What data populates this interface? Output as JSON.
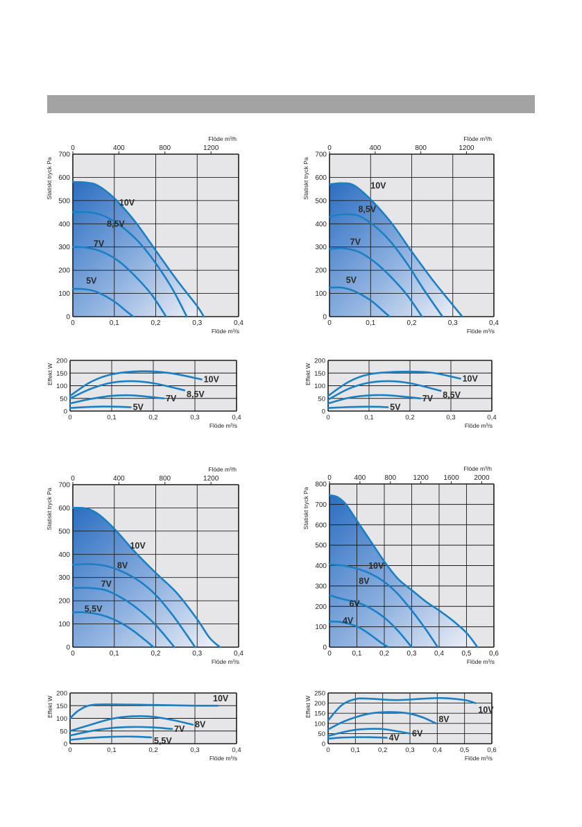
{
  "header": {
    "title": ""
  },
  "colors": {
    "plot_background": "#e6e6e8",
    "grid": "#1a1a1a",
    "curve": "#1a7fc4",
    "fill_dark": "#2b6ec1",
    "fill_light": "#f2f2f7",
    "header_bar": "#a3a3a3"
  },
  "chart_data": [
    {
      "id": "fan-a-pressure",
      "type": "line",
      "ylabel": "Statiskt tryck Pa",
      "xlabel": "Flöde m³/s",
      "top_axis_label": "Flöde m³/h",
      "xlim": [
        0,
        0.4
      ],
      "ylim": [
        0,
        700
      ],
      "x_ticks": [
        "0",
        "0,1",
        "0,2",
        "0,3",
        "0,4"
      ],
      "y_ticks": [
        "0",
        "100",
        "200",
        "300",
        "400",
        "500",
        "600",
        "700"
      ],
      "top_ticks": [
        "0",
        "400",
        "800",
        "1200"
      ],
      "grid": true,
      "fill_under_max": true,
      "series": [
        {
          "name": "10V",
          "x": [
            0,
            0.03,
            0.06,
            0.1,
            0.15,
            0.2,
            0.25,
            0.3,
            0.316
          ],
          "y": [
            580,
            578,
            565,
            510,
            410,
            285,
            160,
            45,
            0
          ]
        },
        {
          "name": "8,5V",
          "x": [
            0,
            0.04,
            0.08,
            0.12,
            0.16,
            0.2,
            0.24,
            0.275
          ],
          "y": [
            450,
            450,
            430,
            385,
            320,
            230,
            120,
            0
          ]
        },
        {
          "name": "7V",
          "x": [
            0,
            0.03,
            0.07,
            0.11,
            0.15,
            0.19,
            0.225
          ],
          "y": [
            300,
            298,
            280,
            240,
            175,
            95,
            0
          ]
        },
        {
          "name": "5V",
          "x": [
            0,
            0.03,
            0.06,
            0.1,
            0.13,
            0.146
          ],
          "y": [
            120,
            118,
            105,
            65,
            22,
            0
          ]
        }
      ]
    },
    {
      "id": "fan-a-power",
      "type": "line",
      "ylabel": "Effekt W",
      "xlabel": "Flöde m³/s",
      "xlim": [
        0,
        0.4
      ],
      "ylim": [
        0,
        200
      ],
      "x_ticks": [
        "0",
        "0,1",
        "0,2",
        "0,3",
        "0,4"
      ],
      "y_ticks": [
        "0",
        "50",
        "100",
        "150",
        "200"
      ],
      "grid": true,
      "series": [
        {
          "name": "10V",
          "x": [
            0,
            0.05,
            0.1,
            0.17,
            0.24,
            0.316
          ],
          "y": [
            60,
            115,
            145,
            157,
            150,
            125
          ]
        },
        {
          "name": "8,5V",
          "x": [
            0,
            0.05,
            0.1,
            0.15,
            0.2,
            0.275
          ],
          "y": [
            50,
            88,
            112,
            118,
            110,
            82
          ]
        },
        {
          "name": "7V",
          "x": [
            0,
            0.05,
            0.1,
            0.15,
            0.225
          ],
          "y": [
            30,
            48,
            60,
            62,
            50
          ]
        },
        {
          "name": "5V",
          "x": [
            0,
            0.04,
            0.08,
            0.12,
            0.146
          ],
          "y": [
            12,
            16,
            18,
            17,
            15
          ]
        }
      ]
    },
    {
      "id": "fan-b-pressure",
      "type": "line",
      "ylabel": "Statiskt tryck Pa",
      "xlabel": "Flöde m³/s",
      "top_axis_label": "Flöde m³/h",
      "xlim": [
        0,
        0.4
      ],
      "ylim": [
        0,
        700
      ],
      "x_ticks": [
        "0",
        "0,1",
        "0,2",
        "0,3",
        "0,4"
      ],
      "y_ticks": [
        "0",
        "100",
        "200",
        "300",
        "400",
        "500",
        "600",
        "700"
      ],
      "top_ticks": [
        "0",
        "400",
        "800",
        "1200"
      ],
      "grid": true,
      "fill_under_max": true,
      "series": [
        {
          "name": "10V",
          "x": [
            0,
            0.03,
            0.06,
            0.1,
            0.15,
            0.2,
            0.25,
            0.3,
            0.323
          ],
          "y": [
            570,
            575,
            565,
            505,
            405,
            280,
            160,
            50,
            0
          ]
        },
        {
          "name": "8,5V",
          "x": [
            0,
            0.03,
            0.07,
            0.11,
            0.15,
            0.19,
            0.23,
            0.275
          ],
          "y": [
            430,
            440,
            435,
            390,
            320,
            225,
            115,
            0
          ]
        },
        {
          "name": "7V",
          "x": [
            0,
            0.03,
            0.07,
            0.11,
            0.15,
            0.19,
            0.225
          ],
          "y": [
            290,
            295,
            280,
            235,
            170,
            90,
            0
          ]
        },
        {
          "name": "5V",
          "x": [
            0,
            0.03,
            0.06,
            0.1,
            0.13,
            0.146
          ],
          "y": [
            125,
            125,
            110,
            70,
            25,
            0
          ]
        }
      ]
    },
    {
      "id": "fan-b-power",
      "type": "line",
      "ylabel": "Effekt W",
      "xlabel": "Flöde m³/s",
      "xlim": [
        0,
        0.4
      ],
      "ylim": [
        0,
        200
      ],
      "x_ticks": [
        "0",
        "0,1",
        "0,2",
        "0,3",
        "0,4"
      ],
      "y_ticks": [
        "0",
        "50",
        "100",
        "150",
        "200"
      ],
      "grid": true,
      "series": [
        {
          "name": "10V",
          "x": [
            0,
            0.05,
            0.1,
            0.17,
            0.25,
            0.323
          ],
          "y": [
            60,
            115,
            145,
            155,
            152,
            128
          ]
        },
        {
          "name": "8,5V",
          "x": [
            0,
            0.05,
            0.1,
            0.15,
            0.2,
            0.275
          ],
          "y": [
            45,
            88,
            112,
            118,
            110,
            80
          ]
        },
        {
          "name": "7V",
          "x": [
            0,
            0.05,
            0.1,
            0.15,
            0.225
          ],
          "y": [
            30,
            52,
            62,
            62,
            50
          ]
        },
        {
          "name": "5V",
          "x": [
            0,
            0.04,
            0.08,
            0.12,
            0.146
          ],
          "y": [
            12,
            15,
            17,
            17,
            15
          ]
        }
      ]
    },
    {
      "id": "fan-c-pressure",
      "type": "line",
      "ylabel": "Statiskt tryck Pa",
      "xlabel": "Flöde m³/s",
      "top_axis_label": "Flöde m³/h",
      "xlim": [
        0,
        0.4
      ],
      "ylim": [
        0,
        700
      ],
      "x_ticks": [
        "0",
        "0,1",
        "0,2",
        "0,3",
        "0,4"
      ],
      "y_ticks": [
        "0",
        "100",
        "200",
        "300",
        "400",
        "500",
        "600",
        "700"
      ],
      "top_ticks": [
        "0",
        "400",
        "800",
        "1200"
      ],
      "grid": true,
      "fill_under_max": true,
      "series": [
        {
          "name": "10V",
          "x": [
            0,
            0.03,
            0.06,
            0.1,
            0.15,
            0.2,
            0.25,
            0.3,
            0.33,
            0.355
          ],
          "y": [
            600,
            598,
            575,
            510,
            410,
            320,
            235,
            120,
            40,
            0
          ]
        },
        {
          "name": "8V",
          "x": [
            0,
            0.04,
            0.08,
            0.12,
            0.16,
            0.2,
            0.24,
            0.27,
            0.295
          ],
          "y": [
            355,
            358,
            350,
            325,
            285,
            225,
            140,
            65,
            0
          ]
        },
        {
          "name": "7V",
          "x": [
            0,
            0.04,
            0.08,
            0.12,
            0.16,
            0.2,
            0.245
          ],
          "y": [
            255,
            255,
            245,
            210,
            160,
            95,
            0
          ]
        },
        {
          "name": "5,5V",
          "x": [
            0,
            0.03,
            0.07,
            0.11,
            0.15,
            0.195
          ],
          "y": [
            150,
            150,
            138,
            110,
            65,
            0
          ]
        }
      ]
    },
    {
      "id": "fan-c-power",
      "type": "line",
      "ylabel": "Effekt W",
      "xlabel": "Flöde m³/s",
      "xlim": [
        0,
        0.4
      ],
      "ylim": [
        0,
        200
      ],
      "x_ticks": [
        "0",
        "0,1",
        "0,2",
        "0,3",
        "0,4"
      ],
      "y_ticks": [
        "0",
        "50",
        "100",
        "150",
        "200"
      ],
      "grid": true,
      "series": [
        {
          "name": "10V",
          "x": [
            0,
            0.02,
            0.05,
            0.1,
            0.2,
            0.3,
            0.355
          ],
          "y": [
            100,
            130,
            152,
            155,
            153,
            150,
            150
          ]
        },
        {
          "name": "8V",
          "x": [
            0,
            0.05,
            0.1,
            0.15,
            0.2,
            0.25,
            0.295
          ],
          "y": [
            50,
            75,
            98,
            108,
            106,
            92,
            75
          ]
        },
        {
          "name": "7V",
          "x": [
            0,
            0.05,
            0.1,
            0.15,
            0.2,
            0.245
          ],
          "y": [
            32,
            50,
            62,
            66,
            64,
            58
          ]
        },
        {
          "name": "5,5V",
          "x": [
            0,
            0.05,
            0.1,
            0.15,
            0.195
          ],
          "y": [
            15,
            23,
            27,
            28,
            25
          ]
        }
      ]
    },
    {
      "id": "fan-d-pressure",
      "type": "line",
      "ylabel": "Statiskt tryck Pa",
      "xlabel": "Flöde m³/s",
      "top_axis_label": "Flöde m³/h",
      "xlim": [
        0,
        0.6
      ],
      "ylim": [
        0,
        800
      ],
      "x_ticks": [
        "0",
        "0,1",
        "0,2",
        "0,3",
        "0,4",
        "0,5",
        "0,6"
      ],
      "y_ticks": [
        "0",
        "100",
        "200",
        "300",
        "400",
        "500",
        "600",
        "700",
        "800"
      ],
      "top_ticks": [
        "0",
        "400",
        "800",
        "1200",
        "1600",
        "2000"
      ],
      "grid": true,
      "fill_under_max": true,
      "series": [
        {
          "name": "10V",
          "x": [
            0,
            0.03,
            0.06,
            0.1,
            0.15,
            0.2,
            0.25,
            0.3,
            0.35,
            0.4,
            0.45,
            0.5,
            0.54
          ],
          "y": [
            745,
            735,
            700,
            620,
            520,
            420,
            335,
            280,
            225,
            180,
            130,
            70,
            0
          ]
        },
        {
          "name": "8V",
          "x": [
            0,
            0.05,
            0.1,
            0.15,
            0.2,
            0.25,
            0.3,
            0.35,
            0.395
          ],
          "y": [
            405,
            400,
            385,
            360,
            320,
            260,
            180,
            90,
            0
          ]
        },
        {
          "name": "6V",
          "x": [
            0,
            0.05,
            0.1,
            0.15,
            0.2,
            0.25,
            0.3
          ],
          "y": [
            255,
            235,
            220,
            190,
            145,
            80,
            0
          ]
        },
        {
          "name": "4V",
          "x": [
            0,
            0.03,
            0.07,
            0.11,
            0.15,
            0.19,
            0.215
          ],
          "y": [
            125,
            125,
            115,
            95,
            60,
            20,
            0
          ]
        }
      ]
    },
    {
      "id": "fan-d-power",
      "type": "line",
      "ylabel": "Effekt W",
      "xlabel": "Flöde m³/s",
      "xlim": [
        0,
        0.6
      ],
      "ylim": [
        0,
        250
      ],
      "x_ticks": [
        "0",
        "0,1",
        "0,2",
        "0,3",
        "0,4",
        "0,5",
        "0,6"
      ],
      "y_ticks": [
        "0",
        "50",
        "100",
        "150",
        "200",
        "250"
      ],
      "grid": true,
      "series": [
        {
          "name": "10V",
          "x": [
            0,
            0.05,
            0.1,
            0.15,
            0.25,
            0.35,
            0.42,
            0.5,
            0.54
          ],
          "y": [
            115,
            190,
            220,
            222,
            215,
            222,
            225,
            215,
            200
          ]
        },
        {
          "name": "8V",
          "x": [
            0,
            0.05,
            0.1,
            0.15,
            0.2,
            0.25,
            0.3,
            0.35,
            0.395
          ],
          "y": [
            70,
            105,
            130,
            148,
            155,
            155,
            148,
            128,
            100
          ]
        },
        {
          "name": "6V",
          "x": [
            0,
            0.05,
            0.1,
            0.15,
            0.2,
            0.25,
            0.3
          ],
          "y": [
            38,
            55,
            68,
            73,
            72,
            62,
            50
          ]
        },
        {
          "name": "4V",
          "x": [
            0,
            0.05,
            0.1,
            0.15,
            0.2,
            0.215
          ],
          "y": [
            25,
            30,
            32,
            32,
            30,
            29
          ]
        }
      ]
    }
  ]
}
